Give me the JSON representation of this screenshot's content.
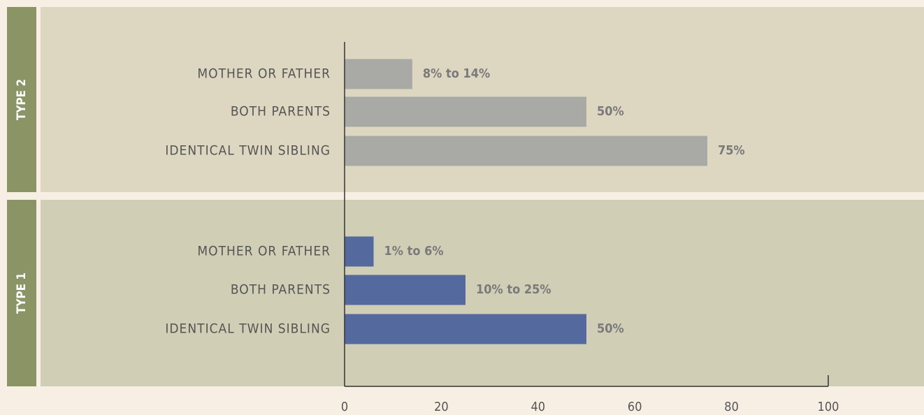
{
  "chart_data": {
    "type": "bar",
    "orientation": "horizontal",
    "xlim": [
      0,
      100
    ],
    "xticks": [
      0,
      20,
      40,
      60,
      80,
      100
    ],
    "series": [
      {
        "name": "TYPE 2",
        "color": "#a9a9a6",
        "panel_color": "#ddd6c1",
        "categories": [
          "MOTHER OR FATHER",
          "BOTH PARENTS",
          "IDENTICAL TWIN SIBLING"
        ],
        "values": [
          14,
          50,
          75
        ],
        "value_labels": [
          "8% to 14%",
          "50%",
          "75%"
        ]
      },
      {
        "name": "TYPE 1",
        "color": "#546a9e",
        "panel_color": "#d0ceb5",
        "categories": [
          "MOTHER OR FATHER",
          "BOTH PARENTS",
          "IDENTICAL TWIN SIBLING"
        ],
        "values": [
          6,
          25,
          50
        ],
        "value_labels": [
          "1% to 6%",
          "10% to 25%",
          "50%"
        ]
      }
    ]
  }
}
